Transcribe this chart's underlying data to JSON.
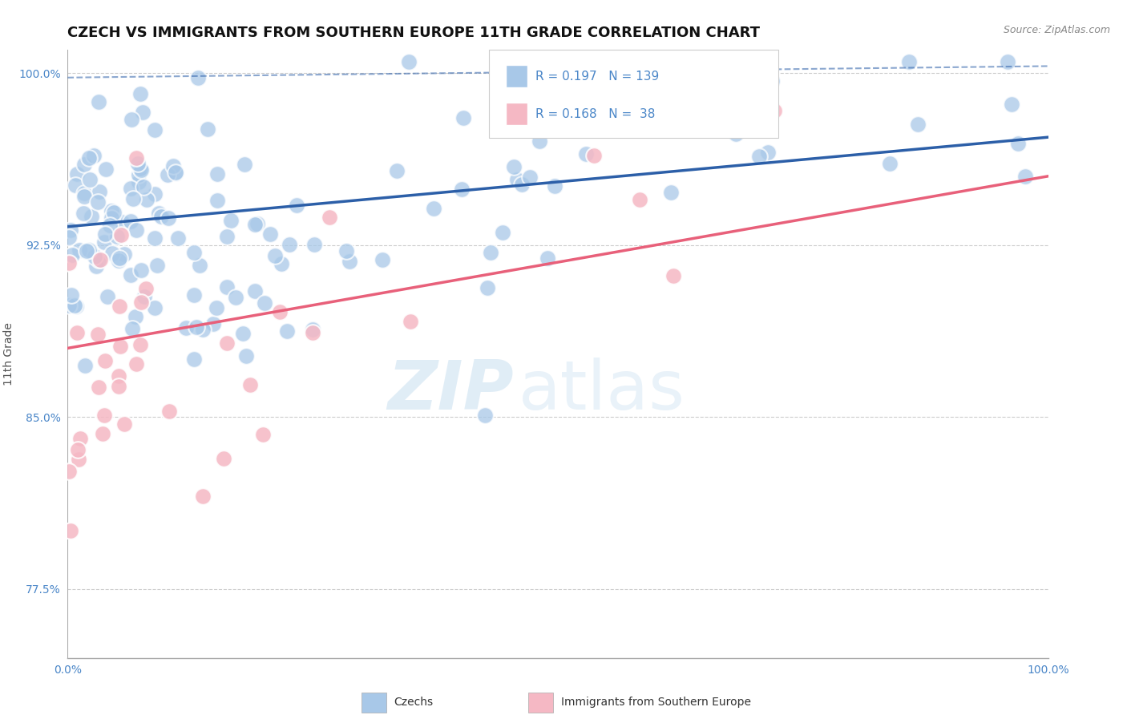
{
  "title": "CZECH VS IMMIGRANTS FROM SOUTHERN EUROPE 11TH GRADE CORRELATION CHART",
  "source": "Source: ZipAtlas.com",
  "ylabel": "11th Grade",
  "xlim": [
    0.0,
    1.0
  ],
  "ylim": [
    0.745,
    1.01
  ],
  "yticks": [
    0.775,
    0.85,
    0.925,
    1.0
  ],
  "ytick_labels": [
    "77.5%",
    "85.0%",
    "92.5%",
    "100.0%"
  ],
  "xtick_labels": [
    "0.0%",
    "100.0%"
  ],
  "xticks": [
    0.0,
    1.0
  ],
  "blue_R": 0.197,
  "blue_N": 139,
  "pink_R": 0.168,
  "pink_N": 38,
  "legend_czechs": "Czechs",
  "legend_immigrants": "Immigrants from Southern Europe",
  "blue_color": "#a8c8e8",
  "blue_line_color": "#2c5fa8",
  "pink_color": "#f5b8c4",
  "pink_line_color": "#e8607a",
  "text_color": "#4a86c8",
  "background_color": "#ffffff",
  "watermark_zip": "ZIP",
  "watermark_atlas": "atlas",
  "title_fontsize": 13,
  "axis_label_fontsize": 10,
  "tick_fontsize": 10,
  "seed": 7,
  "blue_line_y0": 0.933,
  "blue_line_y1": 0.972,
  "pink_line_y0": 0.88,
  "pink_line_y1": 0.955,
  "dash_line_y0": 0.998,
  "dash_line_y1": 1.003
}
